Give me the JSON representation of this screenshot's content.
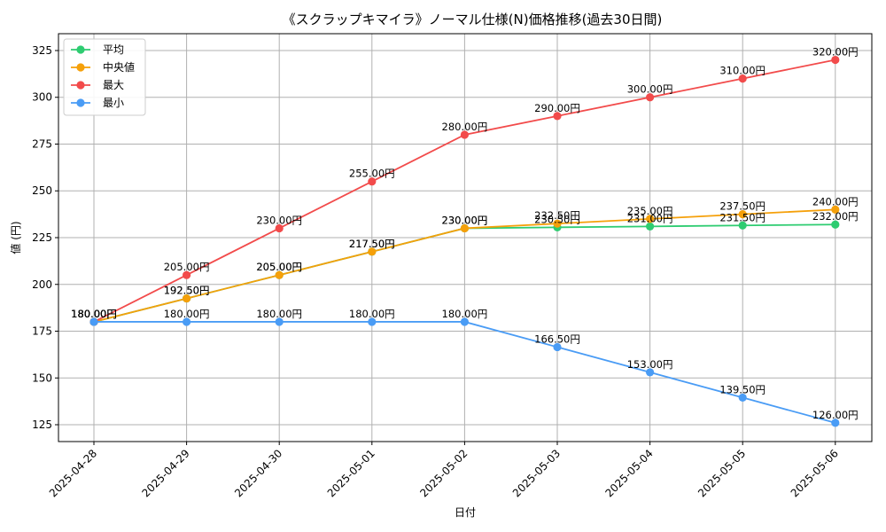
{
  "chart_data": {
    "type": "line",
    "title": "《スクラップキマイラ》ノーマル仕様(N)価格推移(過去30日間)",
    "xlabel": "日付",
    "ylabel": "値 (円)",
    "categories": [
      "2025-04-28",
      "2025-04-29",
      "2025-04-30",
      "2025-05-01",
      "2025-05-02",
      "2025-05-03",
      "2025-05-04",
      "2025-05-05",
      "2025-05-06"
    ],
    "ylim": [
      116,
      334
    ],
    "yticks": [
      125,
      150,
      175,
      200,
      225,
      250,
      275,
      300,
      325
    ],
    "grid": true,
    "legend_position": "top-left",
    "series": [
      {
        "name": "平均",
        "color": "#2ecc71",
        "values": [
          180.0,
          192.5,
          205.0,
          217.5,
          230.0,
          230.5,
          231.0,
          231.5,
          232.0
        ],
        "labels": [
          "180.00円",
          "192.50円",
          "205.00円",
          "217.50円",
          "230.00円",
          "230.50円",
          "231.00円",
          "231.50円",
          "232.00円"
        ]
      },
      {
        "name": "中央値",
        "color": "#f5a00a",
        "values": [
          180.0,
          192.5,
          205.0,
          217.5,
          230.0,
          232.5,
          235.0,
          237.5,
          240.0
        ],
        "labels": [
          "180.00円",
          "192.50円",
          "205.00円",
          "217.50円",
          "230.00円",
          "232.50円",
          "235.00円",
          "237.50円",
          "240.00円"
        ]
      },
      {
        "name": "最大",
        "color": "#f24b4b",
        "values": [
          180.0,
          205.0,
          230.0,
          255.0,
          280.0,
          290.0,
          300.0,
          310.0,
          320.0
        ],
        "labels": [
          "180.00円",
          "205.00円",
          "230.00円",
          "255.00円",
          "280.00円",
          "290.00円",
          "300.00円",
          "310.00円",
          "320.00円"
        ]
      },
      {
        "name": "最小",
        "color": "#4a9cf5",
        "values": [
          180.0,
          180.0,
          180.0,
          180.0,
          180.0,
          166.5,
          153.0,
          139.5,
          126.0
        ],
        "labels": [
          "180.00円",
          "180.00円",
          "180.00円",
          "180.00円",
          "180.00円",
          "166.50円",
          "153.00円",
          "139.50円",
          "126.00円"
        ]
      }
    ]
  }
}
